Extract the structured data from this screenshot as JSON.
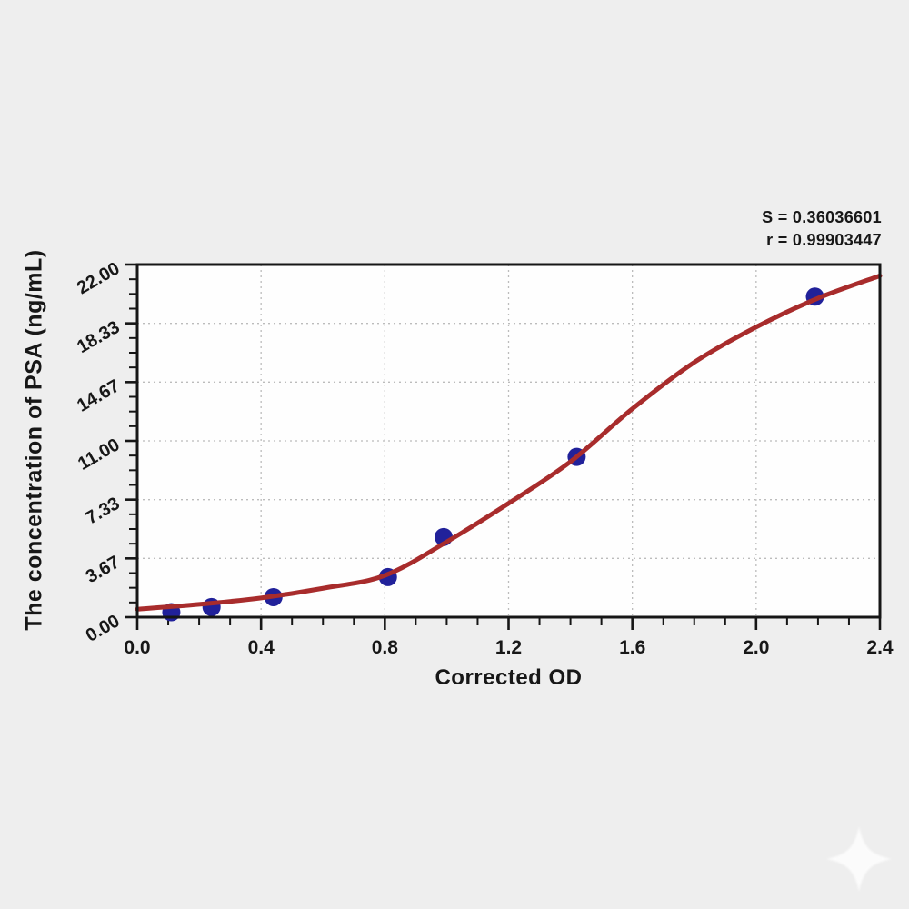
{
  "chart": {
    "y_axis_title": "The concentration of PSA (ng/mL)",
    "x_axis_title": "Corrected OD",
    "annotation": {
      "s_line": "S = 0.36036601",
      "r_line": "r = 0.99903447"
    }
  },
  "chart_data": {
    "type": "scatter",
    "title": "",
    "xlabel": "Corrected OD",
    "ylabel": "The concentration of PSA (ng/mL)",
    "xlim": [
      0.0,
      2.4
    ],
    "ylim": [
      0.0,
      22.0
    ],
    "x_tick_labels": [
      "0.0",
      "0.4",
      "0.8",
      "1.2",
      "1.6",
      "2.0",
      "2.4"
    ],
    "y_tick_labels": [
      "0.00",
      "3.67",
      "7.33",
      "11.00",
      "14.67",
      "18.33",
      "22.00"
    ],
    "x_minor_per_major": 4,
    "y_minor_per_major": 4,
    "grid": "dotted lines at major ticks, both axes",
    "legend": "none",
    "points": [
      {
        "x": 0.11,
        "y": 0.31
      },
      {
        "x": 0.24,
        "y": 0.63
      },
      {
        "x": 0.44,
        "y": 1.25
      },
      {
        "x": 0.81,
        "y": 2.5
      },
      {
        "x": 0.99,
        "y": 5.0
      },
      {
        "x": 1.42,
        "y": 10.0
      },
      {
        "x": 2.19,
        "y": 20.0
      }
    ],
    "fit_curve": {
      "model": "4-parameter-logistic standard curve",
      "samples_x": [
        0.0,
        0.2,
        0.4,
        0.6,
        0.8,
        1.0,
        1.2,
        1.4,
        1.6,
        1.8,
        2.0,
        2.2,
        2.4
      ],
      "samples_y": [
        0.5,
        0.8,
        1.2,
        1.8,
        2.6,
        4.7,
        7.1,
        9.7,
        13.0,
        15.9,
        18.1,
        19.9,
        21.3
      ]
    },
    "stats": {
      "S": "0.36036601",
      "r": "0.99903447"
    },
    "colors": {
      "curve": "#a82c2c",
      "point": "#21219a",
      "grid": "#bcbcbc",
      "axis": "#161616",
      "plot_bg": "#fefefe",
      "page_bg": "#eeeeee",
      "text": "#171717",
      "watermark": "#ffffff"
    },
    "watermark": {
      "shape": "four-point-star"
    }
  }
}
